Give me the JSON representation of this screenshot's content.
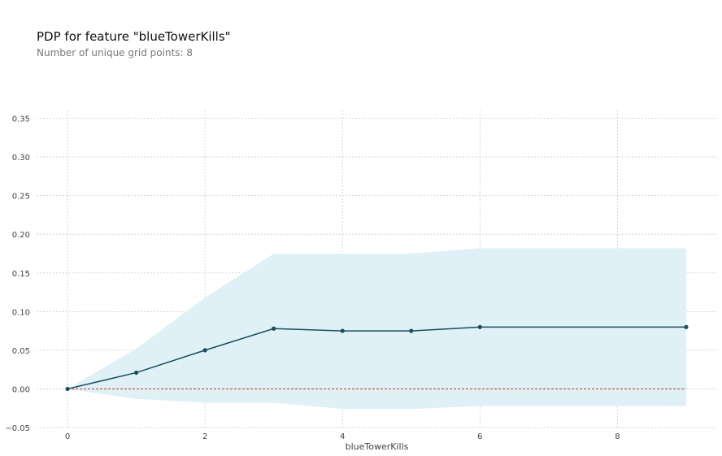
{
  "title": "PDP for feature \"blueTowerKills\"",
  "subtitle": "Number of unique grid points: 8",
  "colors": {
    "line": "#1A4E5D",
    "band": "#DFF0F6",
    "baseline": "#C0392B",
    "grid": "#CCCCCC"
  },
  "chart_data": {
    "type": "line",
    "title": "PDP for feature \"blueTowerKills\"",
    "subtitle": "Number of unique grid points: 8",
    "xlabel": "blueTowerKills",
    "ylabel": "",
    "xlim": [
      -0.45,
      9.45
    ],
    "ylim": [
      -0.05,
      0.36
    ],
    "x_ticks": [
      0,
      2,
      4,
      6,
      8
    ],
    "x_tick_labels": [
      "0",
      "2",
      "4",
      "6",
      "8"
    ],
    "y_ticks": [
      -0.05,
      0.0,
      0.05,
      0.1,
      0.15,
      0.2,
      0.25,
      0.3,
      0.35
    ],
    "y_tick_labels": [
      "−0.05",
      "0.00",
      "0.05",
      "0.10",
      "0.15",
      "0.20",
      "0.25",
      "0.30",
      "0.35"
    ],
    "grid": true,
    "baseline": 0,
    "series": [
      {
        "x": [
          0,
          1,
          2,
          3,
          4,
          5,
          6,
          9
        ],
        "values": [
          0.0,
          0.021,
          0.05,
          0.078,
          0.075,
          0.075,
          0.08,
          0.08
        ],
        "upper": [
          0.0,
          0.052,
          0.118,
          0.175,
          0.175,
          0.175,
          0.182,
          0.182
        ],
        "lower": [
          0.0,
          -0.013,
          -0.018,
          -0.018,
          -0.026,
          -0.026,
          -0.022,
          -0.022
        ]
      }
    ]
  }
}
